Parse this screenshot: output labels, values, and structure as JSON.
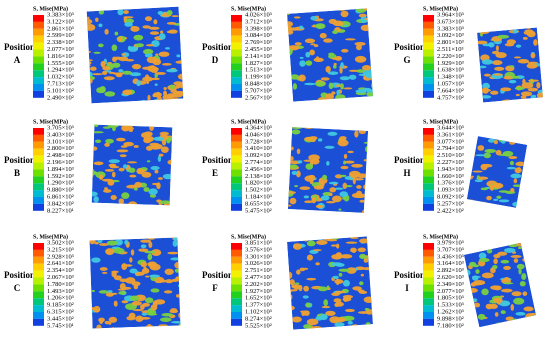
{
  "panels": [
    {
      "title": "S, Mise(MPa)",
      "position": "Position",
      "letter": "A",
      "legend": [
        "3.383×10³",
        "3.122×10³",
        "2.861×10³",
        "2.599×10³",
        "2.338×10³",
        "2.077×10³",
        "1.816×10³",
        "1.555×10³",
        "1.294×10³",
        "1.032×10³",
        "7.713×10²",
        "5.101×10²",
        "2.490×10²"
      ]
    },
    {
      "title": "S, Mise(MPa)",
      "position": "Position",
      "letter": "D",
      "legend": [
        "4.026×10³",
        "3.712×10³",
        "3.398×10³",
        "3.084×10³",
        "2.769×10³",
        "2.455×10³",
        "2.141×10³",
        "1.827×10³",
        "1.513×10³",
        "1.199×10³",
        "8.848×10²",
        "5.707×10²",
        "2.567×10²"
      ]
    },
    {
      "title": "S, Mise(MPa)",
      "position": "Position",
      "letter": "G",
      "legend": [
        "3.964×10³",
        "3.673×10³",
        "3.383×10³",
        "3.092×10³",
        "2.801×10³",
        "2.511×10³",
        "2.220×10³",
        "1.929×10³",
        "1.638×10³",
        "1.348×10³",
        "1.057×10³",
        "7.664×10²",
        "4.757×10²"
      ]
    },
    {
      "title": "S, Mise(MPa)",
      "position": "Position",
      "letter": "B",
      "legend": [
        "3.705×10³",
        "3.403×10³",
        "3.101×10³",
        "2.800×10³",
        "2.498×10³",
        "2.196×10³",
        "1.894×10³",
        "1.592×10³",
        "1.290×10³",
        "9.880×10²",
        "6.861×10²",
        "3.842×10²",
        "8.227×10¹"
      ]
    },
    {
      "title": "S, Mise(MPa)",
      "position": "Position",
      "letter": "E",
      "legend": [
        "4.364×10³",
        "4.046×10³",
        "3.728×10³",
        "3.410×10³",
        "3.092×10³",
        "2.774×10³",
        "2.456×10³",
        "2.138×10³",
        "1.820×10³",
        "1.502×10³",
        "1.184×10³",
        "8.655×10²",
        "5.475×10²"
      ]
    },
    {
      "title": "S, Mise(MPa)",
      "position": "Position",
      "letter": "H",
      "legend": [
        "3.644×10³",
        "3.361×10³",
        "3.077×10³",
        "2.794×10³",
        "2.510×10³",
        "2.227×10³",
        "1.943×10³",
        "1.660×10³",
        "1.376×10³",
        "1.093×10³",
        "8.092×10²",
        "5.257×10²",
        "2.422×10²"
      ]
    },
    {
      "title": "S, Mise(MPa)",
      "position": "Position",
      "letter": "C",
      "legend": [
        "3.502×10³",
        "3.215×10³",
        "2.928×10³",
        "2.641×10³",
        "2.354×10³",
        "2.067×10³",
        "1.780×10³",
        "1.493×10³",
        "1.206×10³",
        "9.185×10²",
        "6.315×10²",
        "3.445×10²",
        "5.745×10¹"
      ]
    },
    {
      "title": "S, Mise(MPa)",
      "position": "Position",
      "letter": "F",
      "legend": [
        "3.851×10³",
        "3.576×10³",
        "3.301×10³",
        "3.026×10³",
        "2.751×10³",
        "2.477×10³",
        "2.202×10³",
        "1.927×10³",
        "1.652×10³",
        "1.377×10³",
        "1.102×10³",
        "8.274×10²",
        "5.525×10²"
      ]
    },
    {
      "title": "S, Mise(MPa)",
      "position": "Position",
      "letter": "I",
      "legend": [
        "3.979×10³",
        "3.707×10³",
        "3.436×10³",
        "3.164×10³",
        "2.892×10³",
        "2.620×10³",
        "2.349×10³",
        "2.077×10³",
        "1.805×10³",
        "1.533×10³",
        "1.262×10³",
        "9.898×10²",
        "7.180×10²"
      ]
    }
  ]
}
